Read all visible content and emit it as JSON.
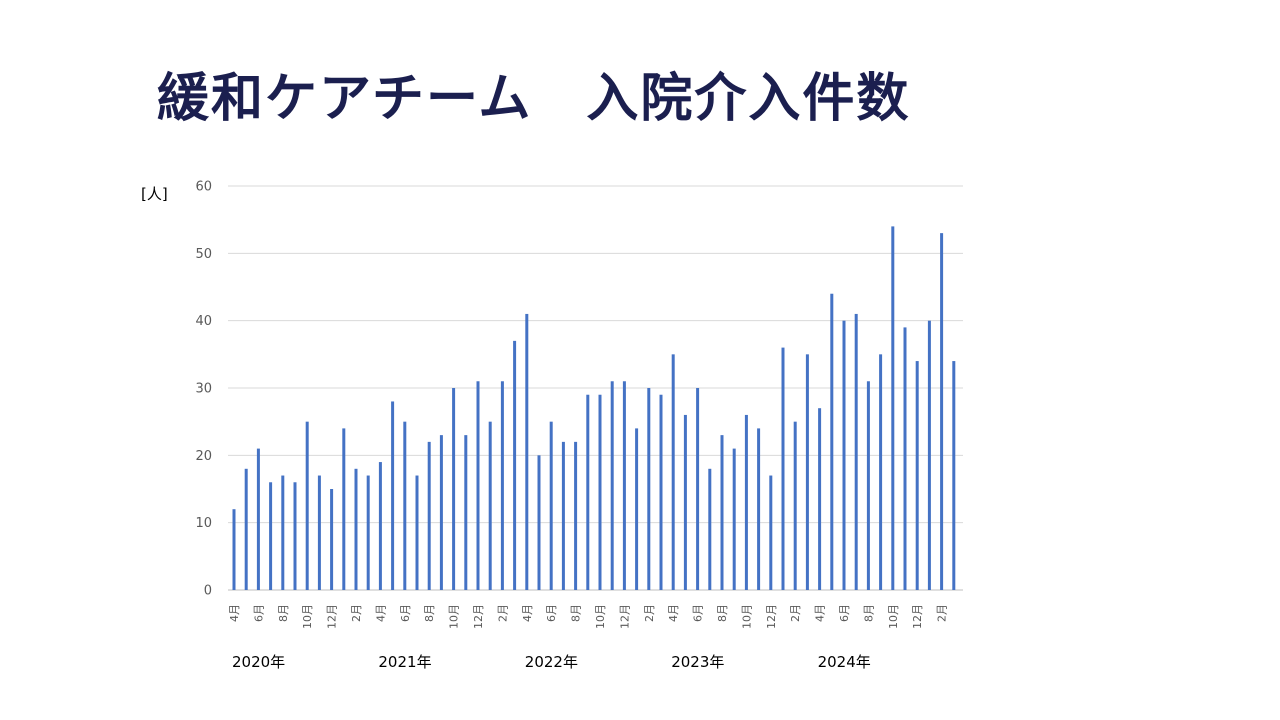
{
  "slide": {
    "title": "緩和ケアチーム　入院介入件数"
  },
  "chart_data": {
    "type": "bar",
    "y_unit": "[人]",
    "ylim": [
      0,
      60
    ],
    "yticks": [
      0,
      10,
      20,
      30,
      40,
      50,
      60
    ],
    "grid": true,
    "bar_color": "#4472c4",
    "categories": [
      "4月",
      "5月",
      "6月",
      "7月",
      "8月",
      "9月",
      "10月",
      "11月",
      "12月",
      "1月",
      "2月",
      "3月",
      "4月",
      "5月",
      "6月",
      "7月",
      "8月",
      "9月",
      "10月",
      "11月",
      "12月",
      "1月",
      "2月",
      "3月",
      "4月",
      "5月",
      "6月",
      "7月",
      "8月",
      "9月",
      "10月",
      "11月",
      "12月",
      "1月",
      "2月",
      "3月",
      "4月",
      "5月",
      "6月",
      "7月",
      "8月",
      "9月",
      "10月",
      "11月",
      "12月",
      "1月",
      "2月",
      "3月",
      "4月",
      "5月",
      "6月",
      "7月",
      "8月",
      "9月",
      "10月",
      "11月",
      "12月",
      "1月",
      "2月",
      "3月"
    ],
    "shown_tick_labels": [
      "4月",
      "6月",
      "8月",
      "10月",
      "12月",
      "2月",
      "4月",
      "6月",
      "8月",
      "10月",
      "12月",
      "2月",
      "4月",
      "6月",
      "8月",
      "10月",
      "12月",
      "2月",
      "4月",
      "6月",
      "8月",
      "10月",
      "12月",
      "2月",
      "4月",
      "6月",
      "8月",
      "10月",
      "12月",
      "2月"
    ],
    "year_labels": [
      "2020年",
      "2021年",
      "2022年",
      "2023年",
      "2024年"
    ],
    "values": [
      12,
      18,
      21,
      16,
      17,
      16,
      25,
      17,
      15,
      24,
      18,
      17,
      19,
      28,
      25,
      17,
      22,
      23,
      30,
      23,
      31,
      25,
      31,
      37,
      41,
      20,
      25,
      22,
      22,
      29,
      29,
      31,
      31,
      24,
      30,
      29,
      35,
      26,
      30,
      18,
      23,
      21,
      26,
      24,
      17,
      36,
      25,
      35,
      27,
      44,
      40,
      41,
      31,
      35,
      54,
      39,
      34,
      40,
      53,
      34
    ]
  }
}
